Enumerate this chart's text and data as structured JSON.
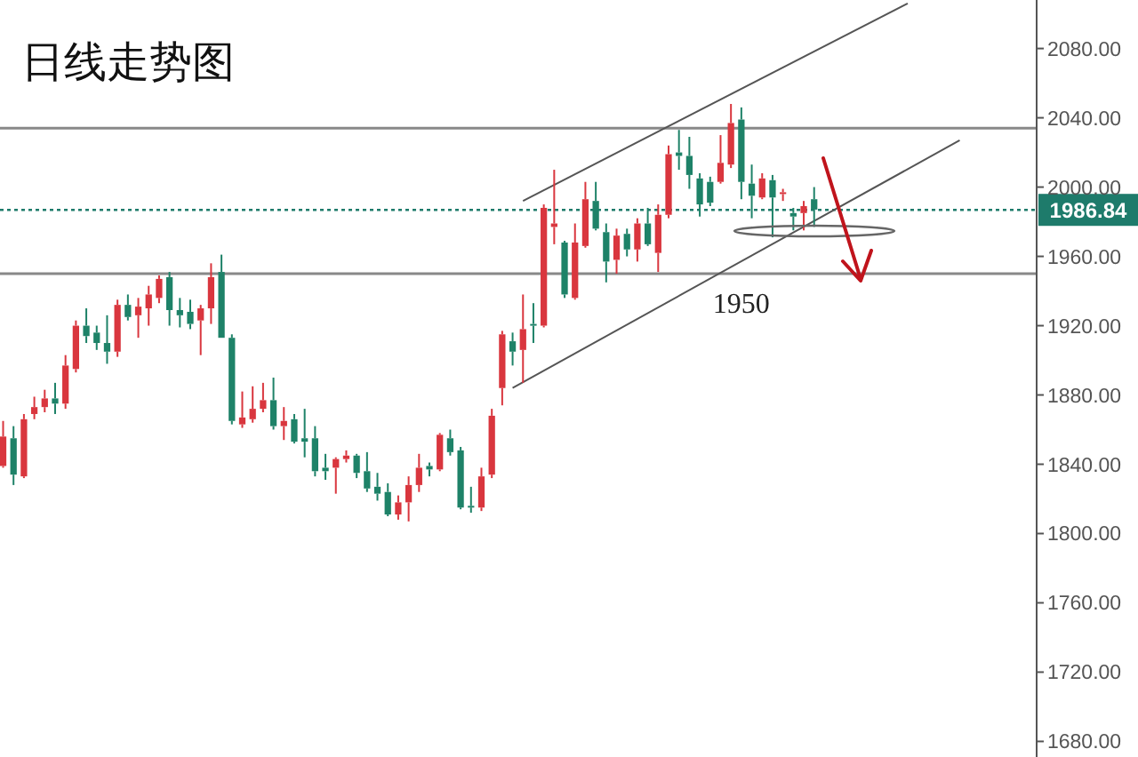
{
  "chart_data": {
    "type": "candlestick",
    "title": "日线走势图",
    "categories": [
      null,
      null,
      null,
      null,
      null,
      null,
      null,
      null,
      null,
      null,
      null,
      null,
      null,
      null,
      null,
      null,
      null,
      null,
      null,
      null,
      null,
      null,
      null,
      null,
      null,
      null,
      null,
      null,
      null,
      null,
      null,
      null,
      null,
      null,
      null,
      null,
      null,
      null,
      null,
      null,
      null,
      null,
      null,
      null,
      null,
      null,
      null,
      null,
      null,
      null,
      null,
      null,
      null,
      null,
      null,
      null,
      null,
      null,
      null,
      null,
      null,
      null,
      null,
      null,
      null,
      null,
      null,
      null,
      null,
      null,
      null,
      null,
      null,
      null,
      null,
      null,
      null,
      null,
      null,
      null,
      null,
      null,
      null,
      null,
      null,
      null,
      null,
      null,
      null,
      null,
      null,
      null,
      null,
      null,
      null,
      null,
      null,
      null,
      null,
      null
    ],
    "ohlc": [
      [
        1839,
        1865,
        1838,
        1856
      ],
      [
        1855,
        1862,
        1828,
        1834
      ],
      [
        1833,
        1869,
        1832,
        1866
      ],
      [
        1869,
        1879,
        1866,
        1873
      ],
      [
        1873,
        1883,
        1870,
        1878
      ],
      [
        1878,
        1887,
        1869,
        1875
      ],
      [
        1875,
        1903,
        1872,
        1897
      ],
      [
        1895,
        1923,
        1893,
        1920
      ],
      [
        1920,
        1930,
        1910,
        1914
      ],
      [
        1916,
        1920,
        1906,
        1910
      ],
      [
        1910,
        1926,
        1898,
        1905
      ],
      [
        1905,
        1935,
        1902,
        1932
      ],
      [
        1932,
        1938,
        1923,
        1925
      ],
      [
        1926,
        1936,
        1913,
        1931
      ],
      [
        1930,
        1943,
        1920,
        1938
      ],
      [
        1936,
        1949,
        1933,
        1947
      ],
      [
        1948,
        1951,
        1920,
        1929
      ],
      [
        1929,
        1936,
        1919,
        1926
      ],
      [
        1928,
        1935,
        1918,
        1921
      ],
      [
        1923,
        1932,
        1903,
        1930
      ],
      [
        1930,
        1956,
        1921,
        1948
      ],
      [
        1951,
        1961,
        1913,
        1913
      ],
      [
        1913,
        1915,
        1863,
        1865
      ],
      [
        1863,
        1882,
        1861,
        1867
      ],
      [
        1866,
        1885,
        1864,
        1872
      ],
      [
        1872,
        1887,
        1870,
        1877
      ],
      [
        1877,
        1890,
        1860,
        1862
      ],
      [
        1862,
        1873,
        1854,
        1865
      ],
      [
        1866,
        1869,
        1852,
        1853
      ],
      [
        1855,
        1872,
        1844,
        1853
      ],
      [
        1855,
        1862,
        1833,
        1836
      ],
      [
        1838,
        1846,
        1831,
        1836
      ],
      [
        1838,
        1844,
        1823,
        1843
      ],
      [
        1843,
        1848,
        1841,
        1845
      ],
      [
        1845,
        1846,
        1832,
        1835
      ],
      [
        1836,
        1847,
        1824,
        1826
      ],
      [
        1827,
        1835,
        1819,
        1823
      ],
      [
        1824,
        1829,
        1810,
        1811
      ],
      [
        1811,
        1822,
        1808,
        1818
      ],
      [
        1818,
        1833,
        1807,
        1828
      ],
      [
        1828,
        1846,
        1824,
        1838
      ],
      [
        1839,
        1841,
        1833,
        1837
      ],
      [
        1837,
        1858,
        1836,
        1857
      ],
      [
        1855,
        1860,
        1845,
        1847
      ],
      [
        1848,
        1850,
        1814,
        1815
      ],
      [
        1816,
        1827,
        1812,
        1815
      ],
      [
        1815,
        1838,
        1813,
        1833
      ],
      [
        1834,
        1872,
        1832,
        1868
      ],
      [
        1884,
        1917,
        1874,
        1915
      ],
      [
        1911,
        1916,
        1897,
        1905
      ],
      [
        1906,
        1938,
        1887,
        1918
      ],
      [
        1921,
        1933,
        1910,
        1920
      ],
      [
        1920,
        1990,
        1919,
        1988
      ],
      [
        1977,
        2010,
        1967,
        1979
      ],
      [
        1968,
        1969,
        1936,
        1938
      ],
      [
        1936,
        1979,
        1935,
        1968
      ],
      [
        1966,
        2003,
        1965,
        1993
      ],
      [
        1992,
        2003,
        1975,
        1976
      ],
      [
        1974,
        1979,
        1945,
        1957
      ],
      [
        1958,
        1976,
        1950,
        1972
      ],
      [
        1973,
        1976,
        1960,
        1964
      ],
      [
        1964,
        1982,
        1957,
        1979
      ],
      [
        1979,
        1988,
        1966,
        1967
      ],
      [
        1962,
        1990,
        1951,
        1984
      ],
      [
        1984,
        2024,
        1982,
        2019
      ],
      [
        2020,
        2033,
        2010,
        2018
      ],
      [
        2018,
        2029,
        1999,
        2007
      ],
      [
        2005,
        2008,
        1983,
        1990
      ],
      [
        2003,
        2006,
        1989,
        1991
      ],
      [
        2003,
        2030,
        2002,
        2014
      ],
      [
        2013,
        2048,
        2011,
        2037
      ],
      [
        2039,
        2046,
        1993,
        2003
      ],
      [
        2002,
        2013,
        1982,
        1995
      ],
      [
        1994,
        2008,
        1993,
        2005
      ],
      [
        2004,
        2007,
        1971,
        1994
      ],
      [
        1996,
        1999,
        1992,
        1997
      ],
      [
        1985,
        1988,
        1975,
        1983
      ],
      [
        1985,
        1992,
        1975,
        1989
      ],
      [
        1993,
        2000,
        1977,
        1987
      ],
      null,
      null,
      null,
      null,
      null,
      null,
      null,
      null,
      null,
      null,
      null,
      null,
      null,
      null,
      null,
      null,
      null,
      null,
      null,
      null,
      null
    ],
    "colors": [
      "#d9363e",
      "#1e8268",
      "#d9363e",
      "#d9363e",
      "#d9363e",
      "#1e8268",
      "#d9363e",
      "#d9363e",
      "#1e8268",
      "#1e8268",
      "#1e8268",
      "#d9363e",
      "#1e8268",
      "#d9363e",
      "#d9363e",
      "#d9363e",
      "#1e8268",
      "#1e8268",
      "#1e8268",
      "#d9363e",
      "#d9363e",
      "#1e8268",
      "#1e8268",
      "#d9363e",
      "#d9363e",
      "#d9363e",
      "#1e8268",
      "#d9363e",
      "#1e8268",
      "#1e8268",
      "#1e8268",
      "#1e8268",
      "#d9363e",
      "#d9363e",
      "#1e8268",
      "#1e8268",
      "#1e8268",
      "#1e8268",
      "#d9363e",
      "#d9363e",
      "#d9363e",
      "#1e8268",
      "#d9363e",
      "#1e8268",
      "#1e8268",
      "#1e8268",
      "#d9363e",
      "#d9363e",
      "#d9363e",
      "#1e8268",
      "#d9363e",
      "#1e8268",
      "#d9363e",
      "#d9363e",
      "#1e8268",
      "#d9363e",
      "#d9363e",
      "#1e8268",
      "#1e8268",
      "#d9363e",
      "#1e8268",
      "#d9363e",
      "#1e8268",
      "#d9363e",
      "#d9363e",
      "#1e8268",
      "#1e8268",
      "#1e8268",
      "#1e8268",
      "#d9363e",
      "#d9363e",
      "#1e8268",
      "#1e8268",
      "#d9363e",
      "#1e8268",
      "#d9363e",
      "#1e8268",
      "#d9363e",
      "#1e8268",
      null,
      null,
      null,
      null,
      null,
      null,
      null,
      null,
      null,
      null,
      null,
      null,
      null,
      null,
      null,
      null,
      null,
      null,
      null,
      null,
      null
    ],
    "series": [
      {
        "type": "line",
        "color": "#555555",
        "values": [
          null,
          null,
          null,
          null,
          null,
          null,
          null,
          null,
          null,
          null,
          null,
          null,
          null,
          null,
          null,
          null,
          null,
          null,
          null,
          null,
          null,
          null,
          null,
          null,
          null,
          null,
          null,
          null,
          null,
          null,
          null,
          null,
          null,
          null,
          null,
          null,
          null,
          null,
          null,
          null,
          null,
          null,
          null,
          null,
          null,
          null,
          null,
          null,
          null,
          null,
          1992,
          null,
          null,
          null,
          null,
          null,
          null,
          null,
          null,
          null,
          null,
          null,
          null,
          null,
          null,
          null,
          null,
          null,
          null,
          null,
          null,
          null,
          null,
          null,
          null,
          null,
          null,
          null,
          null,
          null,
          null,
          null,
          null,
          null,
          null,
          null,
          null,
          2106,
          null,
          null,
          null,
          null,
          null,
          null,
          null,
          null,
          null,
          null,
          null,
          null
        ]
      },
      {
        "type": "line",
        "color": "#555555",
        "values": [
          null,
          null,
          null,
          null,
          null,
          null,
          null,
          null,
          null,
          null,
          null,
          null,
          null,
          null,
          null,
          null,
          null,
          null,
          null,
          null,
          null,
          null,
          null,
          null,
          null,
          null,
          null,
          null,
          null,
          null,
          null,
          null,
          null,
          null,
          null,
          null,
          null,
          null,
          null,
          null,
          null,
          null,
          null,
          null,
          null,
          null,
          null,
          null,
          null,
          1884,
          null,
          null,
          null,
          null,
          null,
          null,
          null,
          null,
          null,
          null,
          null,
          null,
          null,
          null,
          null,
          null,
          null,
          null,
          null,
          null,
          null,
          null,
          null,
          null,
          null,
          null,
          null,
          null,
          null,
          null,
          null,
          null,
          null,
          null,
          null,
          null,
          null,
          null,
          null,
          null,
          null,
          null,
          2027,
          null,
          null,
          null,
          null,
          null,
          null,
          null
        ]
      }
    ],
    "ylim": [
      1671,
      2108
    ],
    "yticks": [
      {
        "value": 1680,
        "label": "1680.00"
      },
      {
        "value": 1720,
        "label": "1720.00"
      },
      {
        "value": 1760,
        "label": "1760.00"
      },
      {
        "value": 1800,
        "label": "1800.00"
      },
      {
        "value": 1840,
        "label": "1840.00"
      },
      {
        "value": 1880,
        "label": "1880.00"
      },
      {
        "value": 1920,
        "label": "1920.00"
      },
      {
        "value": 1960,
        "label": "1960.00"
      },
      {
        "value": 2000,
        "label": "2000.00"
      },
      {
        "value": 2040,
        "label": "2040.00"
      },
      {
        "value": 2080,
        "label": "2080.00"
      }
    ],
    "ref_lines": [
      {
        "axis": "y",
        "value": 2034,
        "color": "#888888"
      },
      {
        "axis": "y",
        "value": 1950,
        "label": "1950",
        "color": "#888888"
      },
      {
        "axis": "y",
        "value": 1986.84,
        "label": "1986.84",
        "color": "#1e7b6b",
        "line_style": "dotted"
      }
    ],
    "grid": false
  }
}
